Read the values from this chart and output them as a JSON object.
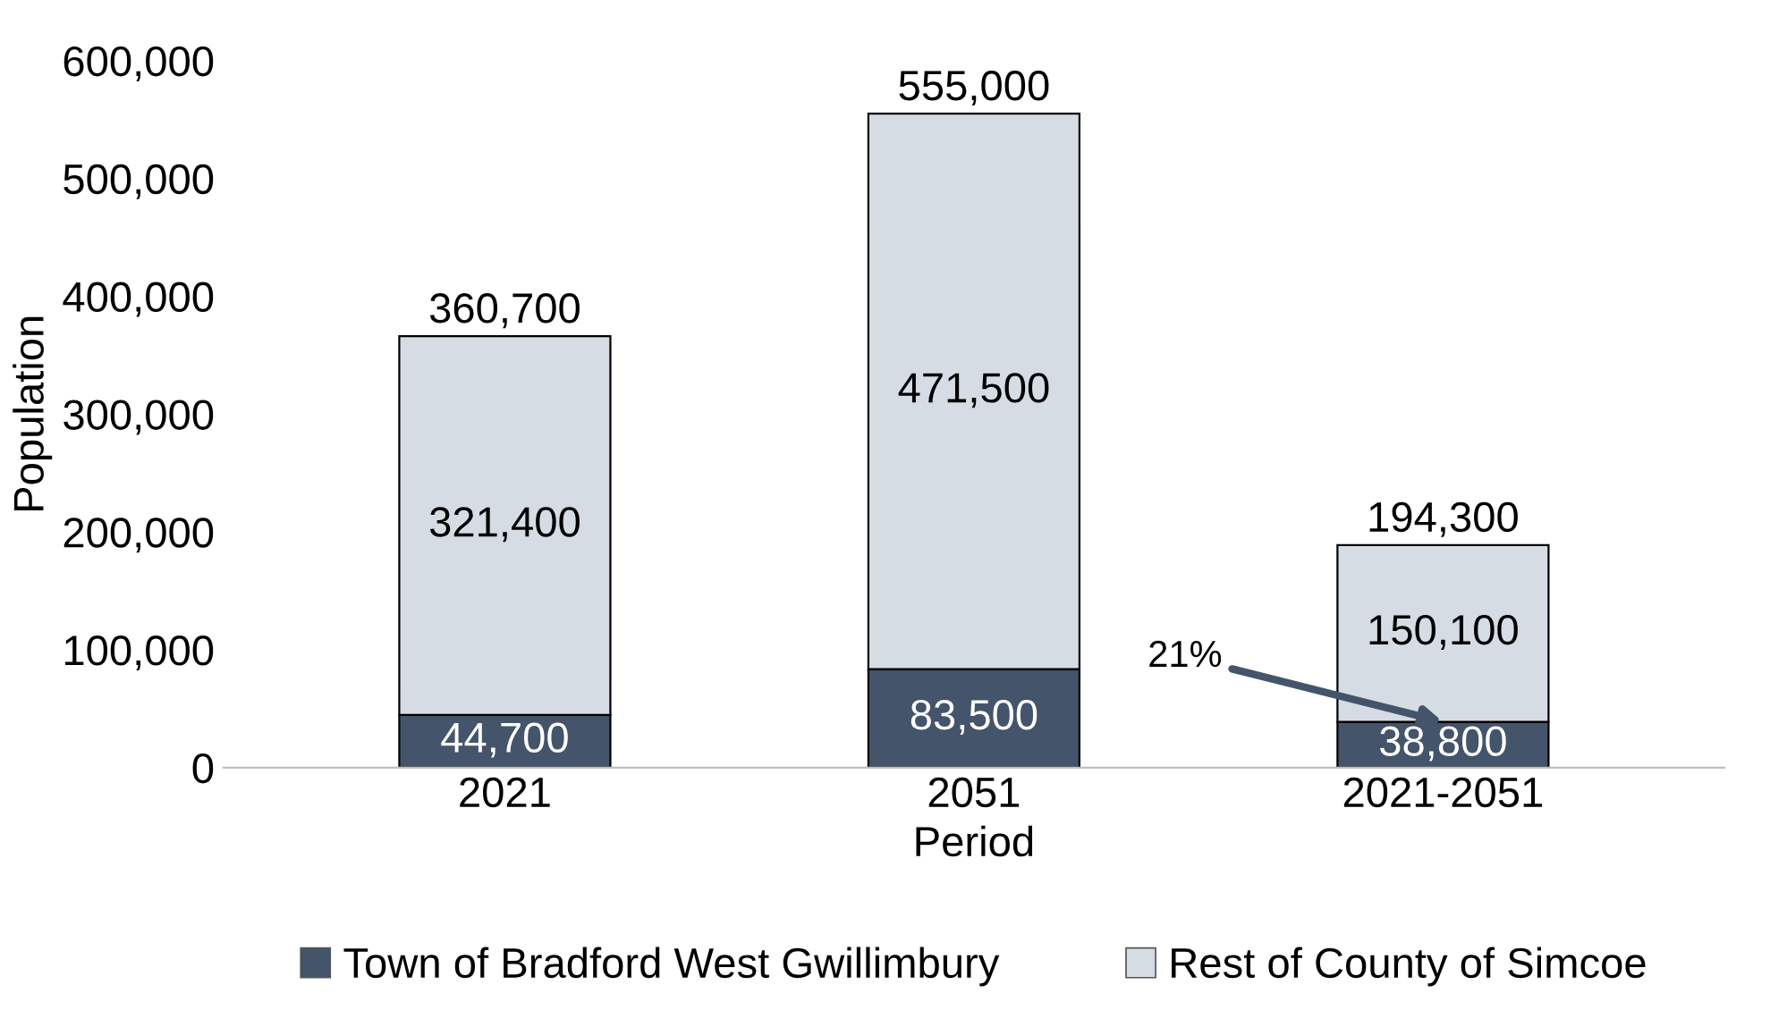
{
  "chart_data": {
    "type": "bar",
    "stacked": true,
    "xlabel": "Period",
    "ylabel": "Population",
    "categories": [
      "2021",
      "2051",
      "2021-2051"
    ],
    "series": [
      {
        "name": "Town of Bradford West Gwillimbury",
        "color": "#44546a",
        "values": [
          44700,
          83500,
          38800
        ],
        "value_labels": [
          "44,700",
          "83,500",
          "38,800"
        ]
      },
      {
        "name": "Rest of County of Simcoe",
        "color": "#d6dce4",
        "values": [
          321400,
          471500,
          150100
        ],
        "value_labels": [
          "321,400",
          "471,500",
          "150,100"
        ]
      }
    ],
    "annotations": [
      {
        "text": "360,700",
        "x": "2021",
        "y": 366100
      },
      {
        "text": "555,000",
        "x": "2051",
        "y": 555000
      },
      {
        "text": "194,300",
        "x": "2021-2051",
        "y": 188900
      },
      {
        "text": "21%",
        "x": "2021-2051",
        "y": 38800
      }
    ],
    "ylim": [
      0,
      600000
    ],
    "yticks": [
      0,
      {
        "value": 100000,
        "label": "100,000"
      },
      {
        "value": 200000,
        "label": "200,000"
      },
      {
        "value": 300000,
        "label": "300,000"
      },
      {
        "value": 400000,
        "label": "400,000"
      },
      {
        "value": 500000,
        "label": "500,000"
      },
      {
        "value": 600000,
        "label": "600,000"
      }
    ],
    "grid": false,
    "legend": "bottom"
  }
}
